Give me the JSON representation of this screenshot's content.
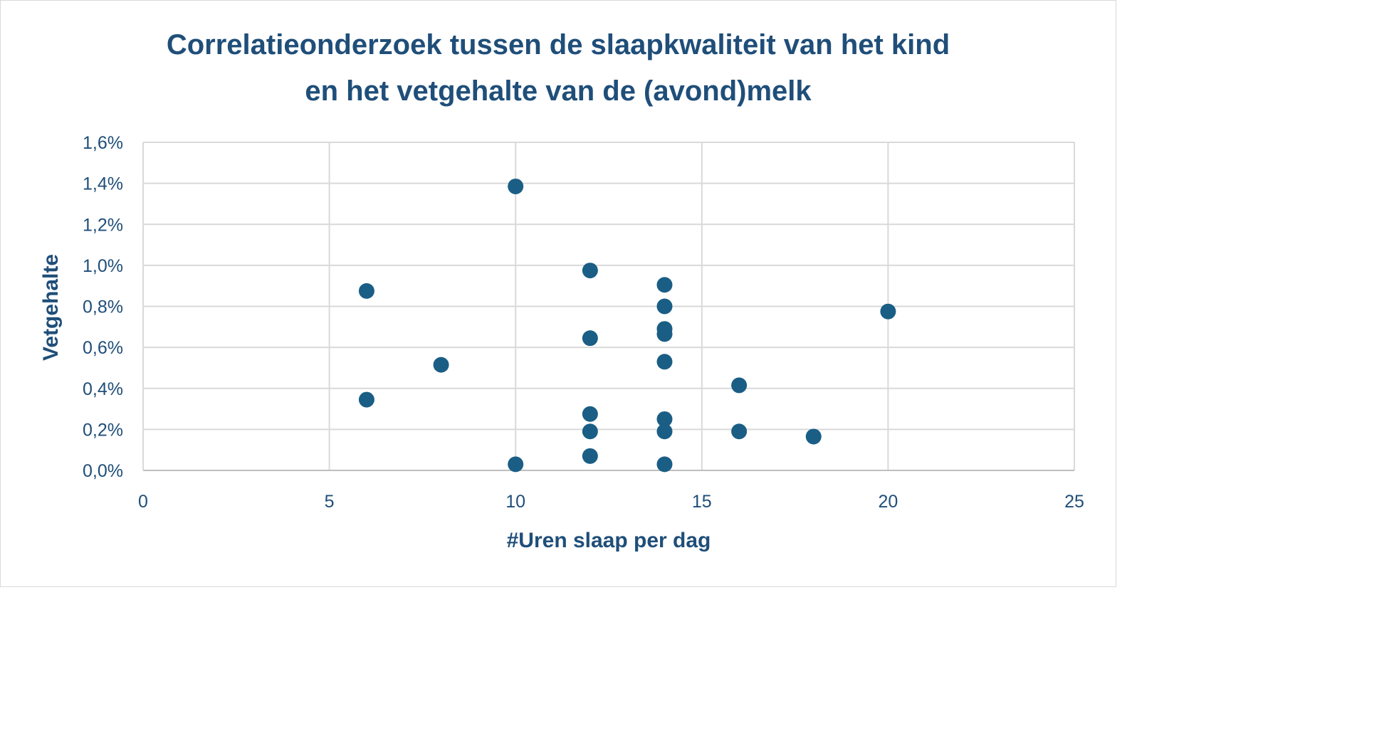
{
  "chart_data": {
    "type": "scatter",
    "title_lines": [
      "Correlatieonderzoek tussen de slaapkwaliteit van het kind",
      "en het vetgehalte van de (avond)melk"
    ],
    "xlabel": "#Uren slaap per dag",
    "ylabel": "Vetgehalte",
    "xlim": [
      0,
      25
    ],
    "ylim": [
      0,
      1.6
    ],
    "x_ticks": [
      0,
      5,
      10,
      15,
      20,
      25
    ],
    "x_tick_labels": [
      "0",
      "5",
      "10",
      "15",
      "20",
      "25"
    ],
    "y_ticks": [
      0,
      0.2,
      0.4,
      0.6,
      0.8,
      1.0,
      1.2,
      1.4,
      1.6
    ],
    "y_tick_labels": [
      "0,0%",
      "0,2%",
      "0,4%",
      "0,6%",
      "0,8%",
      "1,0%",
      "1,2%",
      "1,4%",
      "1,6%"
    ],
    "grid": true,
    "legend": "none",
    "marker_color": "#1a5e85",
    "points": [
      {
        "x": 6,
        "y": 0.875
      },
      {
        "x": 6,
        "y": 0.345
      },
      {
        "x": 8,
        "y": 0.515
      },
      {
        "x": 10,
        "y": 1.385
      },
      {
        "x": 10,
        "y": 0.03
      },
      {
        "x": 12,
        "y": 0.975
      },
      {
        "x": 12,
        "y": 0.645
      },
      {
        "x": 12,
        "y": 0.275
      },
      {
        "x": 12,
        "y": 0.19
      },
      {
        "x": 12,
        "y": 0.07
      },
      {
        "x": 14,
        "y": 0.905
      },
      {
        "x": 14,
        "y": 0.8
      },
      {
        "x": 14,
        "y": 0.69
      },
      {
        "x": 14,
        "y": 0.665
      },
      {
        "x": 14,
        "y": 0.53
      },
      {
        "x": 14,
        "y": 0.25
      },
      {
        "x": 14,
        "y": 0.19
      },
      {
        "x": 14,
        "y": 0.03
      },
      {
        "x": 16,
        "y": 0.415
      },
      {
        "x": 16,
        "y": 0.19
      },
      {
        "x": 18,
        "y": 0.165
      },
      {
        "x": 20,
        "y": 0.775
      }
    ]
  }
}
